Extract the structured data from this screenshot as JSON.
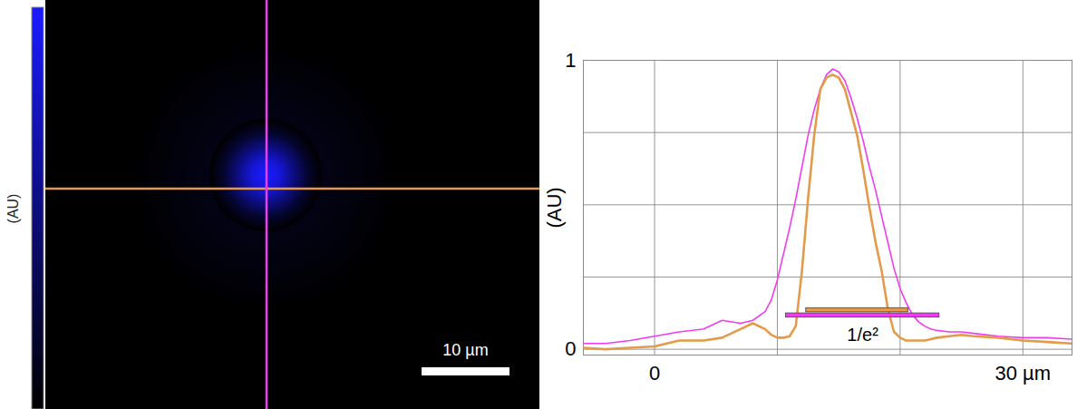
{
  "chart_data": [
    {
      "type": "image",
      "colorbar_label": "(AU)",
      "colors": [
        "#000000",
        "#1a1aff"
      ],
      "scale_bar": {
        "length": 10,
        "label": "10 µm"
      }
    },
    {
      "type": "line",
      "y_label": "(AU)",
      "x": [
        -5.8,
        -4,
        -2,
        0,
        2,
        4,
        5.5,
        7,
        8,
        9,
        9.5,
        10,
        10.5,
        11,
        11.5,
        12,
        12.5,
        13,
        13.5,
        14,
        14.5,
        15,
        15.5,
        16,
        16.5,
        17,
        17.5,
        18,
        18.5,
        19,
        19.5,
        20,
        20.5,
        21,
        21.5,
        22,
        22.5,
        23,
        24,
        25,
        26,
        28,
        30,
        32,
        34
      ],
      "series": [
        {
          "color": "#f03cf0",
          "values": [
            0.02,
            0.02,
            0.03,
            0.045,
            0.06,
            0.07,
            0.1,
            0.09,
            0.1,
            0.13,
            0.17,
            0.24,
            0.33,
            0.42,
            0.52,
            0.63,
            0.74,
            0.83,
            0.9,
            0.95,
            0.97,
            0.96,
            0.93,
            0.87,
            0.8,
            0.72,
            0.63,
            0.55,
            0.46,
            0.37,
            0.28,
            0.21,
            0.16,
            0.12,
            0.095,
            0.08,
            0.07,
            0.065,
            0.06,
            0.06,
            0.055,
            0.045,
            0.04,
            0.04,
            0.035
          ],
          "beam_width": [
            10.7,
            23.2
          ],
          "beam_width_level": 0.117
        },
        {
          "color": "#e39a4a",
          "values": [
            0.005,
            0.0,
            0.005,
            0.01,
            0.03,
            0.03,
            0.04,
            0.07,
            0.09,
            0.07,
            0.05,
            0.04,
            0.04,
            0.045,
            0.08,
            0.27,
            0.52,
            0.74,
            0.9,
            0.94,
            0.95,
            0.94,
            0.9,
            0.82,
            0.74,
            0.62,
            0.49,
            0.37,
            0.27,
            0.14,
            0.06,
            0.04,
            0.03,
            0.03,
            0.03,
            0.03,
            0.035,
            0.04,
            0.045,
            0.05,
            0.045,
            0.04,
            0.03,
            0.025,
            0.02
          ],
          "beam_width": [
            12.35,
            20.66
          ],
          "beam_width_level": 0.135
        }
      ],
      "annotations": [
        {
          "text": "1/e²"
        }
      ],
      "xlim": [
        -5.8,
        34
      ],
      "xticks": [
        {
          "value": 0,
          "label": "0"
        },
        {
          "value": 10,
          "label": null
        },
        {
          "value": 20,
          "label": null
        },
        {
          "value": 30,
          "label": "30 µm"
        }
      ],
      "ylim": [
        -0.02,
        1
      ],
      "yticks": [
        0,
        {
          "value": 0.25,
          "label": null
        },
        {
          "value": 0.5,
          "label": null
        },
        {
          "value": 0.75,
          "label": null
        },
        1
      ],
      "grid": true
    }
  ]
}
